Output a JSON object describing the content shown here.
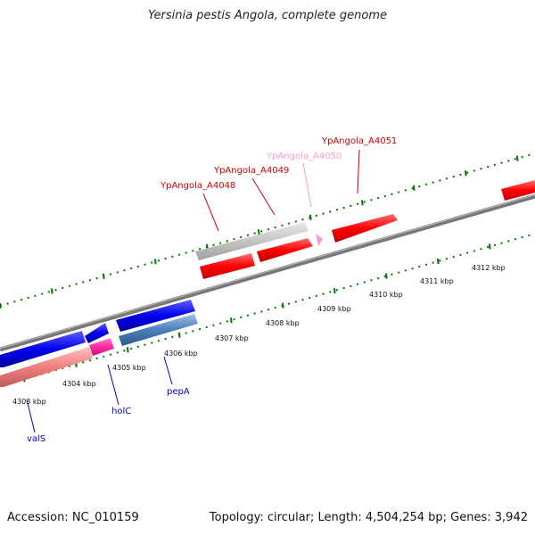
{
  "title": "Yersinia pestis Angola, complete genome",
  "footer": {
    "accession": "Accession: NC_010159",
    "summary": "Topology: circular; Length: 4,504,254 bp; Genes: 3,942"
  },
  "scale_labels": [
    "4303 kbp",
    "4304 kbp",
    "4305 kbp",
    "4306 kbp",
    "4307 kbp",
    "4308 kbp",
    "4309 kbp",
    "4310 kbp",
    "4311 kbp",
    "4312 kbp"
  ],
  "gene_labels": {
    "valS": "valS",
    "holC": "holC",
    "pepA": "pepA",
    "a4048": "YpAngola_A4048",
    "a4049": "YpAngola_A4049",
    "a4050": "YpAngola_A4050",
    "a4051": "YpAngola_A4051"
  },
  "colors": {
    "forward_gene": "#ff0000",
    "reverse_gene": "#0000ee",
    "pseudogene_grey": "#c8c8c8",
    "rna_pink": "#ff2aa0",
    "label_blue": "#0000cc",
    "label_red": "#cc0000",
    "label_pink": "#ff99cc",
    "tick_green": "#007700",
    "backbone": "#777777"
  }
}
